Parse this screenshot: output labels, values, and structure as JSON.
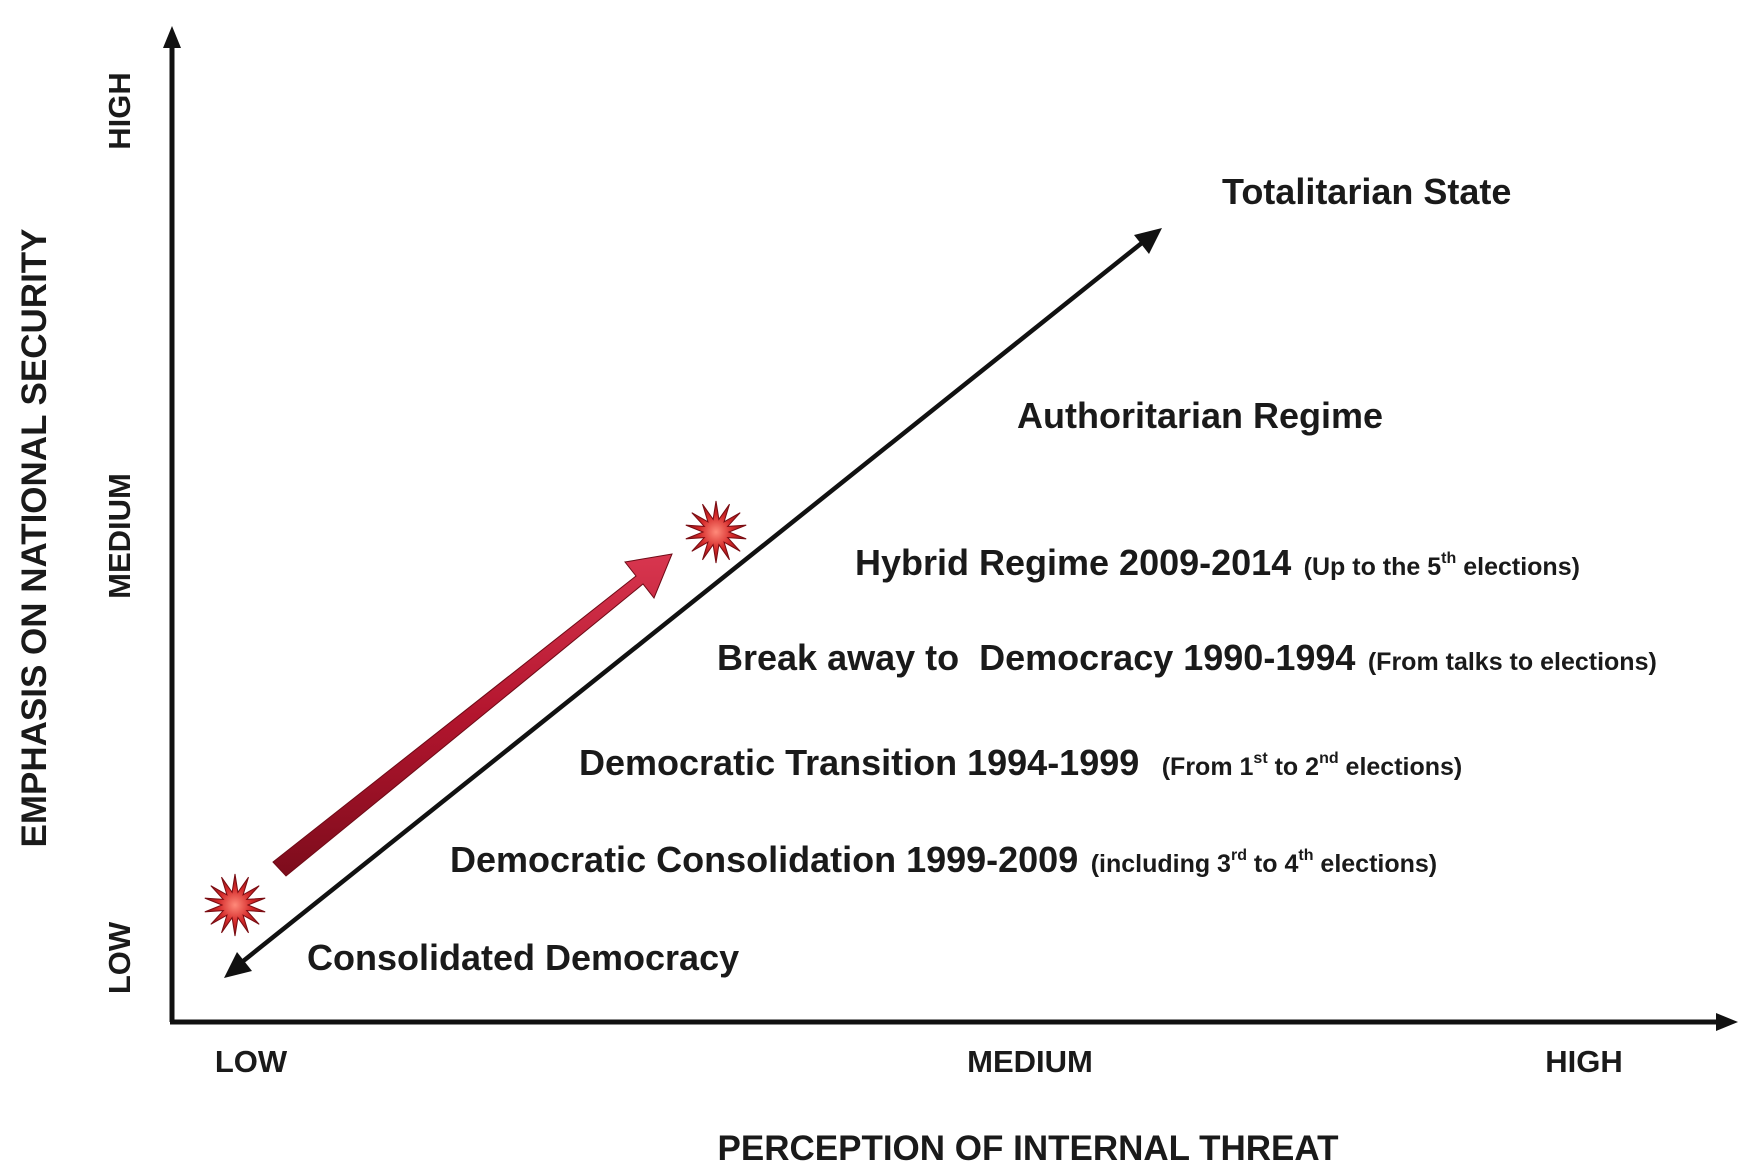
{
  "axes": {
    "x_title": "PERCEPTION OF INTERNAL THREAT",
    "y_title": "EMPHASIS ON NATIONAL SECURITY",
    "x_ticks": [
      "LOW",
      "MEDIUM",
      "HIGH"
    ],
    "y_ticks": [
      "LOW",
      "MEDIUM",
      "HIGH"
    ]
  },
  "stages": {
    "totalitarian": {
      "label": "Totalitarian State"
    },
    "authoritarian": {
      "label": "Authoritarian Regime"
    },
    "hybrid": {
      "label": "Hybrid Regime 2009-2014",
      "note_pre": "(Up to the 5",
      "note_sup": "th",
      "note_post": " elections)"
    },
    "breakaway": {
      "label": "Break away to  Democracy 1990-1994",
      "note": "(From talks to elections)"
    },
    "transition": {
      "label": "Democratic Transition 1994-1999",
      "note_a": "(From 1",
      "sup_a": "st",
      "note_b": " to 2",
      "sup_b": "nd",
      "note_c": " elections)"
    },
    "consolidation": {
      "label": "Democratic Consolidation 1999-2009",
      "note_a": "(including 3",
      "sup_a": "rd",
      "note_b": " to 4",
      "sup_b": "th",
      "note_c": " elections)"
    },
    "consolidated": {
      "label": "Consolidated Democracy"
    }
  },
  "colors": {
    "axis": "#111111",
    "trend_arrow": "#b3152e",
    "starburst": "#c8202f"
  },
  "markers": [
    "starburst-icon",
    "starburst-icon"
  ]
}
